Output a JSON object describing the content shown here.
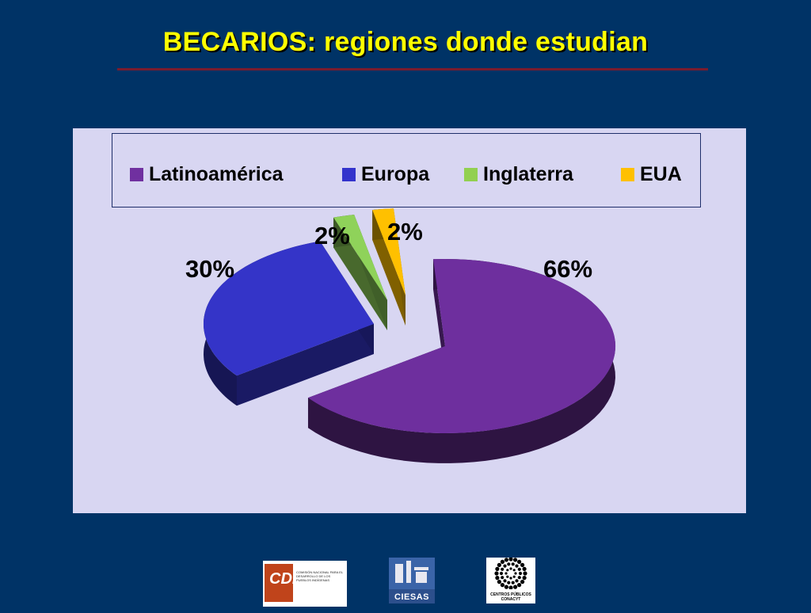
{
  "slide": {
    "title": "BECARIOS: regiones donde estudian"
  },
  "chart_data": {
    "type": "pie",
    "title": "",
    "legend_position": "top",
    "series": [
      {
        "name": "Latinoamérica",
        "value": 66,
        "label": "66%",
        "color": "#6e2f9e"
      },
      {
        "name": "Europa",
        "value": 30,
        "label": "30%",
        "color": "#3434c8"
      },
      {
        "name": "Inglaterra",
        "value": 2,
        "label": "2%",
        "color": "#8fd25a"
      },
      {
        "name": "EUA",
        "value": 2,
        "label": "2%",
        "color": "#ffc000"
      }
    ]
  },
  "logos": {
    "cdi": {
      "mark": "CDI",
      "text": "COMISIÓN NACIONAL PARA EL DESARROLLO DE LOS PUEBLOS INDÍGENAS"
    },
    "ciesas": {
      "mark": "CIESAS"
    },
    "conacyt": {
      "text": "CENTROS PÚBLICOS CONACYT"
    }
  },
  "colors": {
    "background": "#003366",
    "title": "#ffff00",
    "plot_area": "#d8d6f2"
  }
}
